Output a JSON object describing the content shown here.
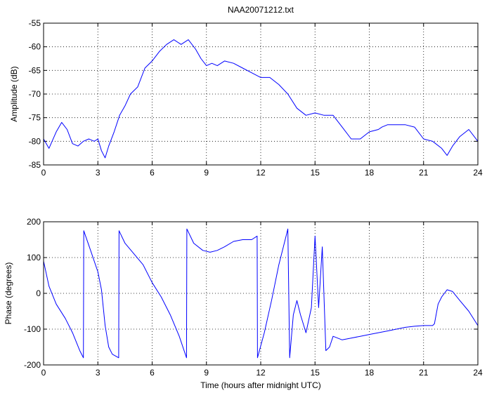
{
  "colors": {
    "series": "#0000ff",
    "axis": "#000000",
    "background": "#ffffff"
  },
  "chart_data": [
    {
      "type": "line",
      "title": "NAA20071212.txt",
      "xlabel": "",
      "ylabel": "Amplitude (dB)",
      "xlim": [
        0,
        24
      ],
      "ylim": [
        -85,
        -55
      ],
      "xticks": [
        "0",
        "3",
        "6",
        "9",
        "12",
        "15",
        "18",
        "21",
        "24"
      ],
      "yticks": [
        "-55",
        "-60",
        "-65",
        "-70",
        "-75",
        "-80",
        "-85"
      ],
      "grid": true,
      "series": [
        {
          "x": [
            0,
            0.3,
            0.7,
            1.0,
            1.3,
            1.6,
            1.9,
            2.2,
            2.5,
            2.8,
            3.0,
            3.2,
            3.4,
            3.6,
            3.9,
            4.2,
            4.5,
            4.8,
            5.2,
            5.6,
            6.0,
            6.4,
            6.8,
            7.2,
            7.6,
            8.0,
            8.4,
            8.7,
            9.0,
            9.3,
            9.6,
            10.0,
            10.5,
            11.0,
            11.5,
            12.0,
            12.5,
            13.0,
            13.5,
            14.0,
            14.5,
            15.0,
            15.5,
            16.0,
            16.5,
            17.0,
            17.5,
            18.0,
            18.5,
            18.7,
            19.0,
            19.5,
            20.0,
            20.5,
            21.0,
            21.5,
            22.0,
            22.3,
            22.6,
            23.0,
            23.5,
            24.0
          ],
          "values": [
            -79.5,
            -81.5,
            -78,
            -76,
            -77.5,
            -80.5,
            -81,
            -80,
            -79.5,
            -80,
            -79.5,
            -82,
            -83.5,
            -81,
            -78,
            -74.5,
            -72.5,
            -70,
            -68.5,
            -64.5,
            -63,
            -61,
            -59.5,
            -58.5,
            -59.5,
            -58.5,
            -60.5,
            -62.5,
            -64,
            -63.5,
            -64,
            -63,
            -63.5,
            -64.5,
            -65.5,
            -66.5,
            -66.5,
            -68,
            -70,
            -73,
            -74.5,
            -74,
            -74.5,
            -74.5,
            -77,
            -79.5,
            -79.5,
            -78,
            -77.5,
            -77,
            -76.5,
            -76.5,
            -76.5,
            -77,
            -79.5,
            -80,
            -81.5,
            -83,
            -81,
            -79,
            -77.5,
            -80
          ]
        }
      ]
    },
    {
      "type": "line",
      "title": "",
      "xlabel": "Time (hours after midnight UTC)",
      "ylabel": "Phase (degrees)",
      "xlim": [
        0,
        24
      ],
      "ylim": [
        -200,
        200
      ],
      "xticks": [
        "0",
        "3",
        "6",
        "9",
        "12",
        "15",
        "18",
        "21",
        "24"
      ],
      "yticks": [
        "200",
        "100",
        "0",
        "-100",
        "-200"
      ],
      "grid": true,
      "series": [
        {
          "x": [
            0,
            0.3,
            0.7,
            1.2,
            1.6,
            2.0,
            2.2,
            2.22,
            2.6,
            3.0,
            3.2,
            3.4,
            3.6,
            3.8,
            4.15,
            4.17,
            4.5,
            5.0,
            5.5,
            6.0,
            6.5,
            7.0,
            7.5,
            7.9,
            7.92,
            8.3,
            8.8,
            9.2,
            9.6,
            10.0,
            10.5,
            11.0,
            11.5,
            11.8,
            11.82,
            12.2,
            12.6,
            13.0,
            13.4,
            13.5,
            13.6,
            13.8,
            14.0,
            14.2,
            14.5,
            14.8,
            15.0,
            15.2,
            15.4,
            15.6,
            15.8,
            16.0,
            16.5,
            17.0,
            17.5,
            18.0,
            18.5,
            19.0,
            19.5,
            20.0,
            20.5,
            21.0,
            21.5,
            21.6,
            21.8,
            22.0,
            22.3,
            22.6,
            23.0,
            23.5,
            24.0
          ],
          "values": [
            90,
            20,
            -30,
            -70,
            -110,
            -160,
            -180,
            175,
            120,
            60,
            10,
            -90,
            -150,
            -170,
            -180,
            175,
            140,
            110,
            80,
            30,
            -10,
            -60,
            -120,
            -180,
            180,
            140,
            120,
            115,
            120,
            130,
            145,
            150,
            150,
            160,
            -180,
            -110,
            -20,
            80,
            160,
            180,
            -180,
            -60,
            -20,
            -60,
            -110,
            -40,
            160,
            -40,
            130,
            -160,
            -150,
            -120,
            -130,
            -125,
            -120,
            -115,
            -110,
            -105,
            -100,
            -95,
            -92,
            -90,
            -90,
            -85,
            -30,
            -10,
            10,
            5,
            -20,
            -50,
            -90
          ]
        }
      ]
    }
  ]
}
